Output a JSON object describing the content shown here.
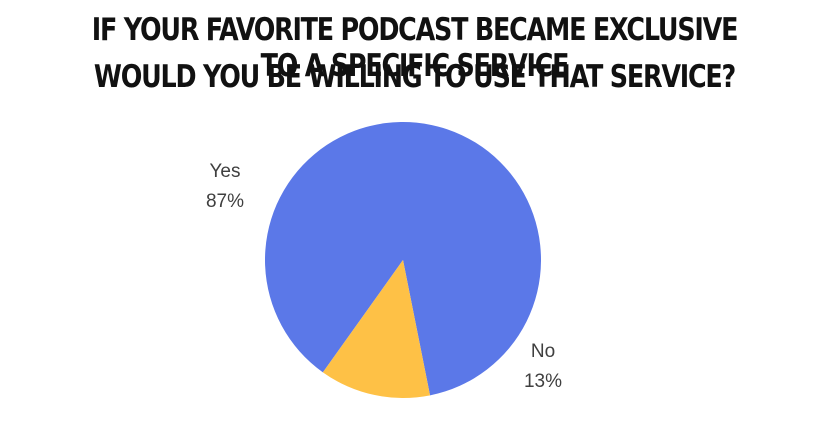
{
  "chart_data": {
    "type": "pie",
    "title_line1": "If your favorite podcast became exclusive to a specific service",
    "title_line2": "would you be willing to use that service?",
    "slices": [
      {
        "label": "Yes",
        "percent_label": "87%",
        "value": 87,
        "color": "#5b78e8"
      },
      {
        "label": "No",
        "percent_label": "13%",
        "value": 13,
        "color": "#fec146"
      }
    ]
  }
}
